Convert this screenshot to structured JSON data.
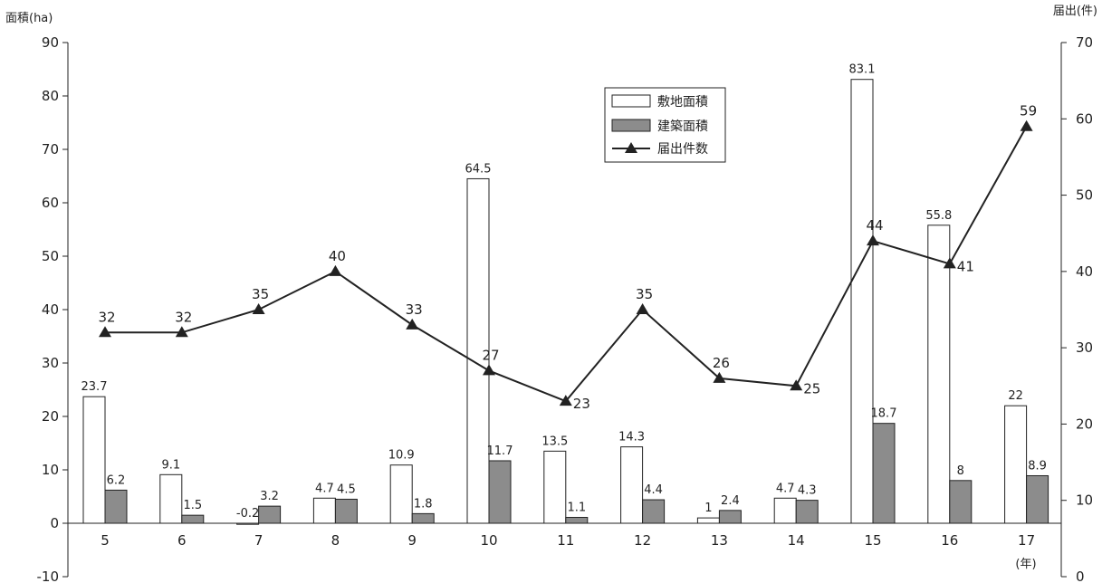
{
  "chart_data": {
    "type": "bar",
    "xlabel": "(年)",
    "ylabel_left": "面積(ha)",
    "ylabel_right": "届出(件)",
    "ylim_left": [
      -10,
      90
    ],
    "ylim_right": [
      0,
      70
    ],
    "yticks_left": [
      -10,
      0,
      10,
      20,
      30,
      40,
      50,
      60,
      70,
      80,
      90
    ],
    "yticks_right": [
      0,
      10,
      20,
      30,
      40,
      50,
      60,
      70
    ],
    "categories": [
      "5",
      "6",
      "7",
      "8",
      "9",
      "10",
      "11",
      "12",
      "13",
      "14",
      "15",
      "16",
      "17"
    ],
    "legend_position": "top-center",
    "grid": false,
    "series": [
      {
        "name": "敷地面積",
        "kind": "bar",
        "axis": "left",
        "color": "#ffffff",
        "values": [
          23.7,
          9.1,
          -0.2,
          4.7,
          10.9,
          64.5,
          13.5,
          14.3,
          1,
          4.7,
          83.1,
          55.8,
          22
        ]
      },
      {
        "name": "建築面積",
        "kind": "bar",
        "axis": "left",
        "color": "#8c8c8c",
        "values": [
          6.2,
          1.5,
          3.2,
          4.5,
          1.8,
          11.7,
          1.1,
          4.4,
          2.4,
          4.3,
          18.7,
          8,
          8.9
        ]
      },
      {
        "name": "届出件数",
        "kind": "line",
        "axis": "right",
        "color": "#222222",
        "marker": "triangle",
        "values": [
          32,
          32,
          35,
          40,
          33,
          27,
          23,
          35,
          26,
          25,
          44,
          41,
          59
        ]
      }
    ],
    "value_labels": {
      "bar1": [
        "23.7",
        "9.1",
        "-0.2",
        "4.7",
        "10.9",
        "64.5",
        "13.5",
        "14.3",
        "1",
        "4.7",
        "83.1",
        "55.8",
        "22"
      ],
      "bar2": [
        "6.2",
        "1.5",
        "3.2",
        "4.5",
        "1.8",
        "11.7",
        "1.1",
        "4.4",
        "2.4",
        "4.3",
        "18.7",
        "8",
        "8.9"
      ],
      "line": [
        "32",
        "32",
        "35",
        "40",
        "33",
        "27",
        "23",
        "35",
        "26",
        "25",
        "44",
        "41",
        "59"
      ]
    }
  }
}
